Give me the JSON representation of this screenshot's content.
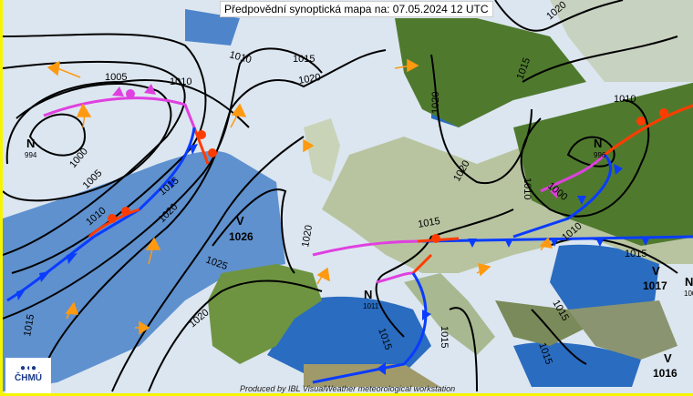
{
  "title": "Předpovědní synoptická mapa na: 07.05.2024 12 UTC",
  "logo": {
    "text": "ČHMÚ"
  },
  "credit": "Produced by IBL VisualWeather meteorological workstation",
  "colors": {
    "sea": "#2a6cc0",
    "land": "#5e8a3a",
    "cloud": "#dce6f0",
    "cold_front": "#0a3cff",
    "warm_front": "#ff3c00",
    "occluded_front": "#e040e0",
    "wind_arrow": "#ff9a10",
    "coast": "#f5f500"
  },
  "pressure_centers": [
    {
      "type": "N",
      "value": "994"
    },
    {
      "type": "V",
      "value": "1026"
    },
    {
      "type": "N",
      "value": "996"
    },
    {
      "type": "N",
      "value": "1011"
    },
    {
      "type": "V",
      "value": "1017"
    },
    {
      "type": "V",
      "value": "1016"
    },
    {
      "type": "N",
      "value": "100"
    }
  ],
  "isobar_labels": [
    "1005",
    "1010",
    "1000",
    "1005",
    "1010",
    "1015",
    "1020",
    "1025",
    "1020",
    "1015",
    "1010",
    "1015",
    "1020",
    "1020",
    "1020",
    "1020",
    "1015",
    "1010",
    "1010",
    "1000",
    "1010",
    "1015",
    "1015",
    "1020",
    "1015",
    "1015",
    "1015",
    "1015"
  ]
}
